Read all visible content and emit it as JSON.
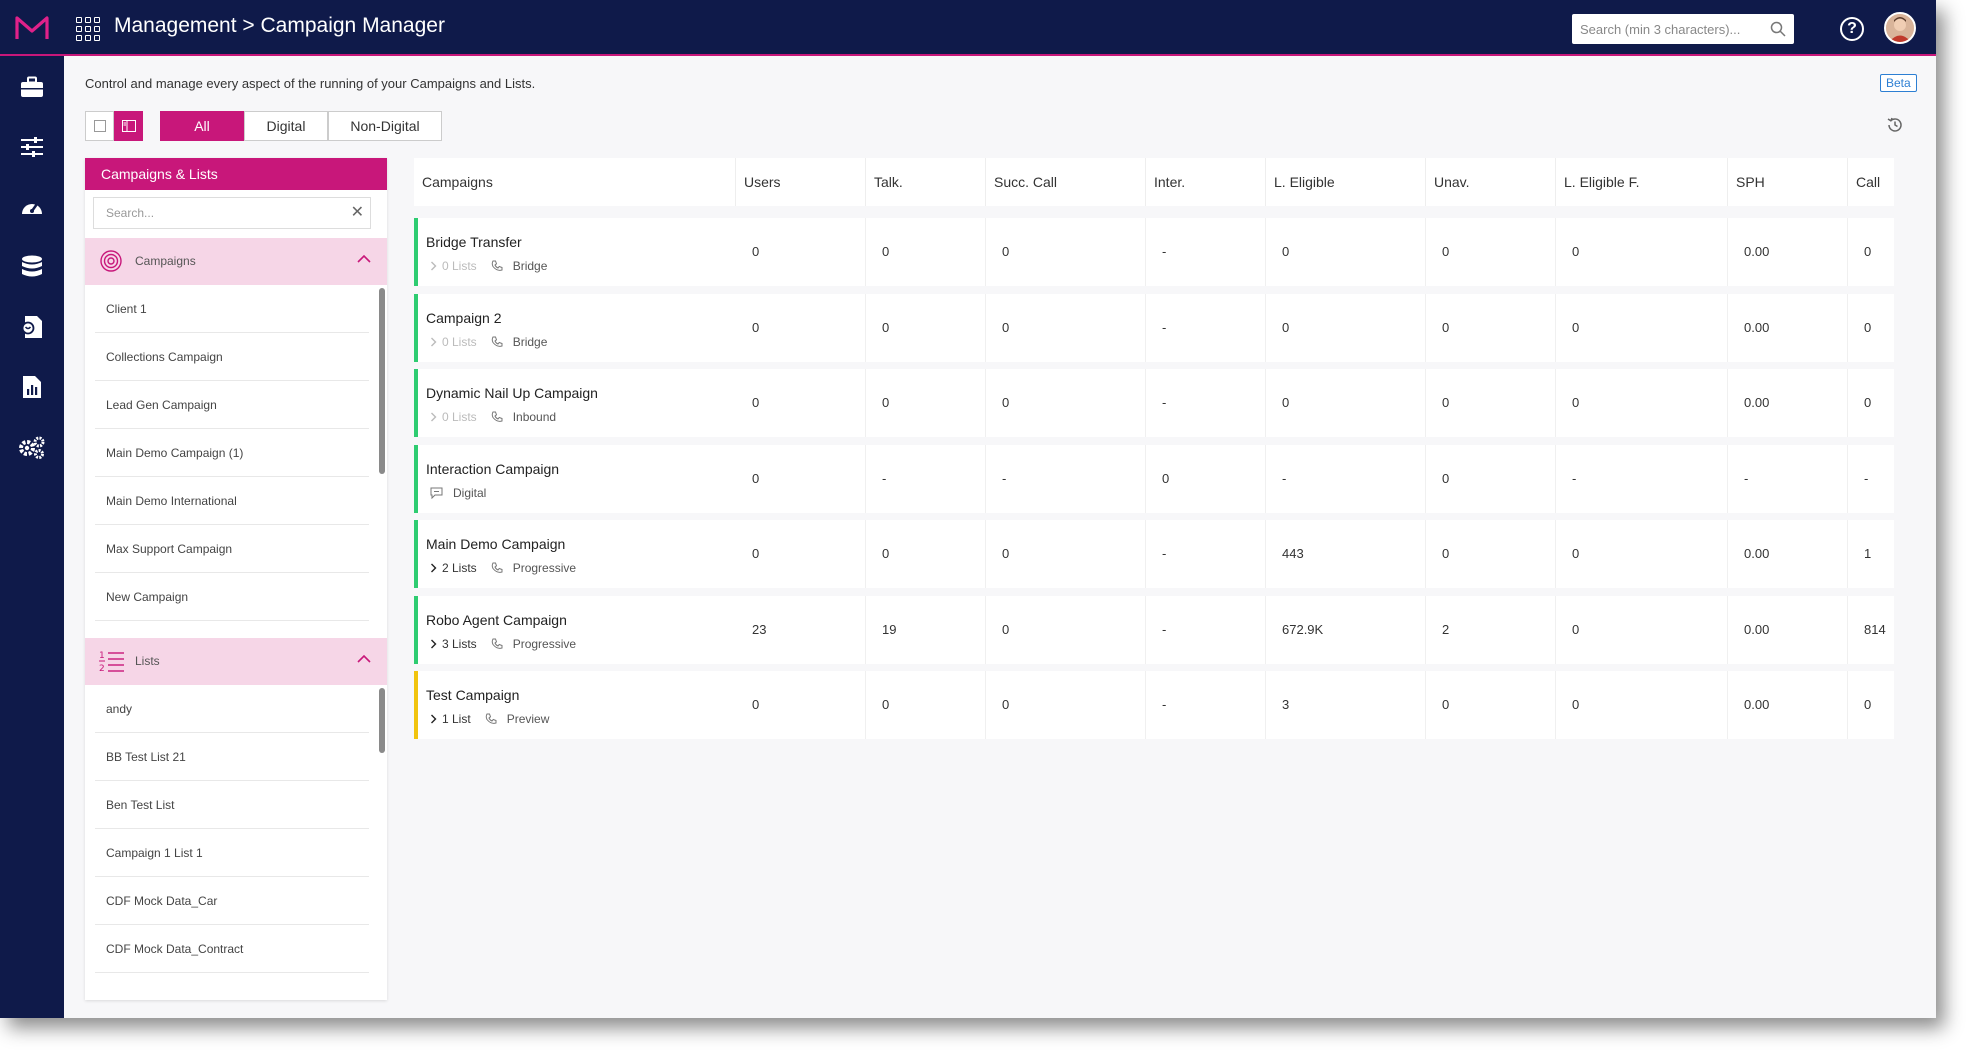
{
  "topbar": {
    "title": "Management > Campaign Manager",
    "search_placeholder": "Search (min 3 characters)...",
    "help_label": "?"
  },
  "colors": {
    "navy": "#0f1a4a",
    "accent": "#c8177a",
    "green": "#2ecc71",
    "yellow": "#f1c40f"
  },
  "main": {
    "description": "Control and manage every aspect of the running of your Campaigns and Lists.",
    "beta_label": "Beta",
    "filter_tabs": [
      {
        "label": "All",
        "active": true
      },
      {
        "label": "Digital",
        "active": false
      },
      {
        "label": "Non-Digital",
        "active": false
      }
    ]
  },
  "panel": {
    "title": "Campaigns & Lists",
    "search_placeholder": "Search...",
    "clear_label": "✕",
    "campaigns_label": "Campaigns",
    "campaigns": [
      "Client 1",
      "Collections Campaign",
      "Lead Gen Campaign",
      "Main Demo Campaign (1)",
      "Main Demo International",
      "Max Support Campaign",
      "New Campaign"
    ],
    "lists_label": "Lists",
    "lists": [
      "andy",
      "BB Test List 21",
      "Ben Test List",
      "Campaign 1 List 1",
      "CDF Mock Data_Car",
      "CDF Mock Data_Contract"
    ]
  },
  "table": {
    "headers": [
      "Campaigns",
      "Users",
      "Talk.",
      "Succ. Call",
      "Inter.",
      "L. Eligible",
      "Unav.",
      "L. Eligible F.",
      "SPH",
      "Call"
    ],
    "rows": [
      {
        "name": "Bridge Transfer",
        "lists": "0 Lists",
        "type": "Bridge",
        "status": "green",
        "has_lists": false,
        "digital": false,
        "values": [
          "0",
          "0",
          "0",
          "-",
          "0",
          "0",
          "0",
          "0.00",
          "0"
        ]
      },
      {
        "name": "Campaign 2",
        "lists": "0 Lists",
        "type": "Bridge",
        "status": "green",
        "has_lists": false,
        "digital": false,
        "values": [
          "0",
          "0",
          "0",
          "-",
          "0",
          "0",
          "0",
          "0.00",
          "0"
        ]
      },
      {
        "name": "Dynamic Nail Up Campaign",
        "lists": "0 Lists",
        "type": "Inbound",
        "status": "green",
        "has_lists": false,
        "digital": false,
        "values": [
          "0",
          "0",
          "0",
          "-",
          "0",
          "0",
          "0",
          "0.00",
          "0"
        ]
      },
      {
        "name": "Interaction Campaign",
        "lists": "",
        "type": "Digital",
        "status": "green",
        "has_lists": false,
        "digital": true,
        "values": [
          "0",
          "-",
          "-",
          "0",
          "-",
          "0",
          "-",
          "-",
          "-"
        ]
      },
      {
        "name": "Main Demo Campaign",
        "lists": "2 Lists",
        "type": "Progressive",
        "status": "green",
        "has_lists": true,
        "digital": false,
        "values": [
          "0",
          "0",
          "0",
          "-",
          "443",
          "0",
          "0",
          "0.00",
          "1"
        ]
      },
      {
        "name": "Robo Agent Campaign",
        "lists": "3 Lists",
        "type": "Progressive",
        "status": "green",
        "has_lists": true,
        "digital": false,
        "values": [
          "23",
          "19",
          "0",
          "-",
          "672.9K",
          "2",
          "0",
          "0.00",
          "814"
        ]
      },
      {
        "name": "Test Campaign",
        "lists": "1 List",
        "type": "Preview",
        "status": "yellow",
        "has_lists": true,
        "digital": false,
        "values": [
          "0",
          "0",
          "0",
          "-",
          "3",
          "0",
          "0",
          "0.00",
          "0"
        ]
      }
    ]
  }
}
